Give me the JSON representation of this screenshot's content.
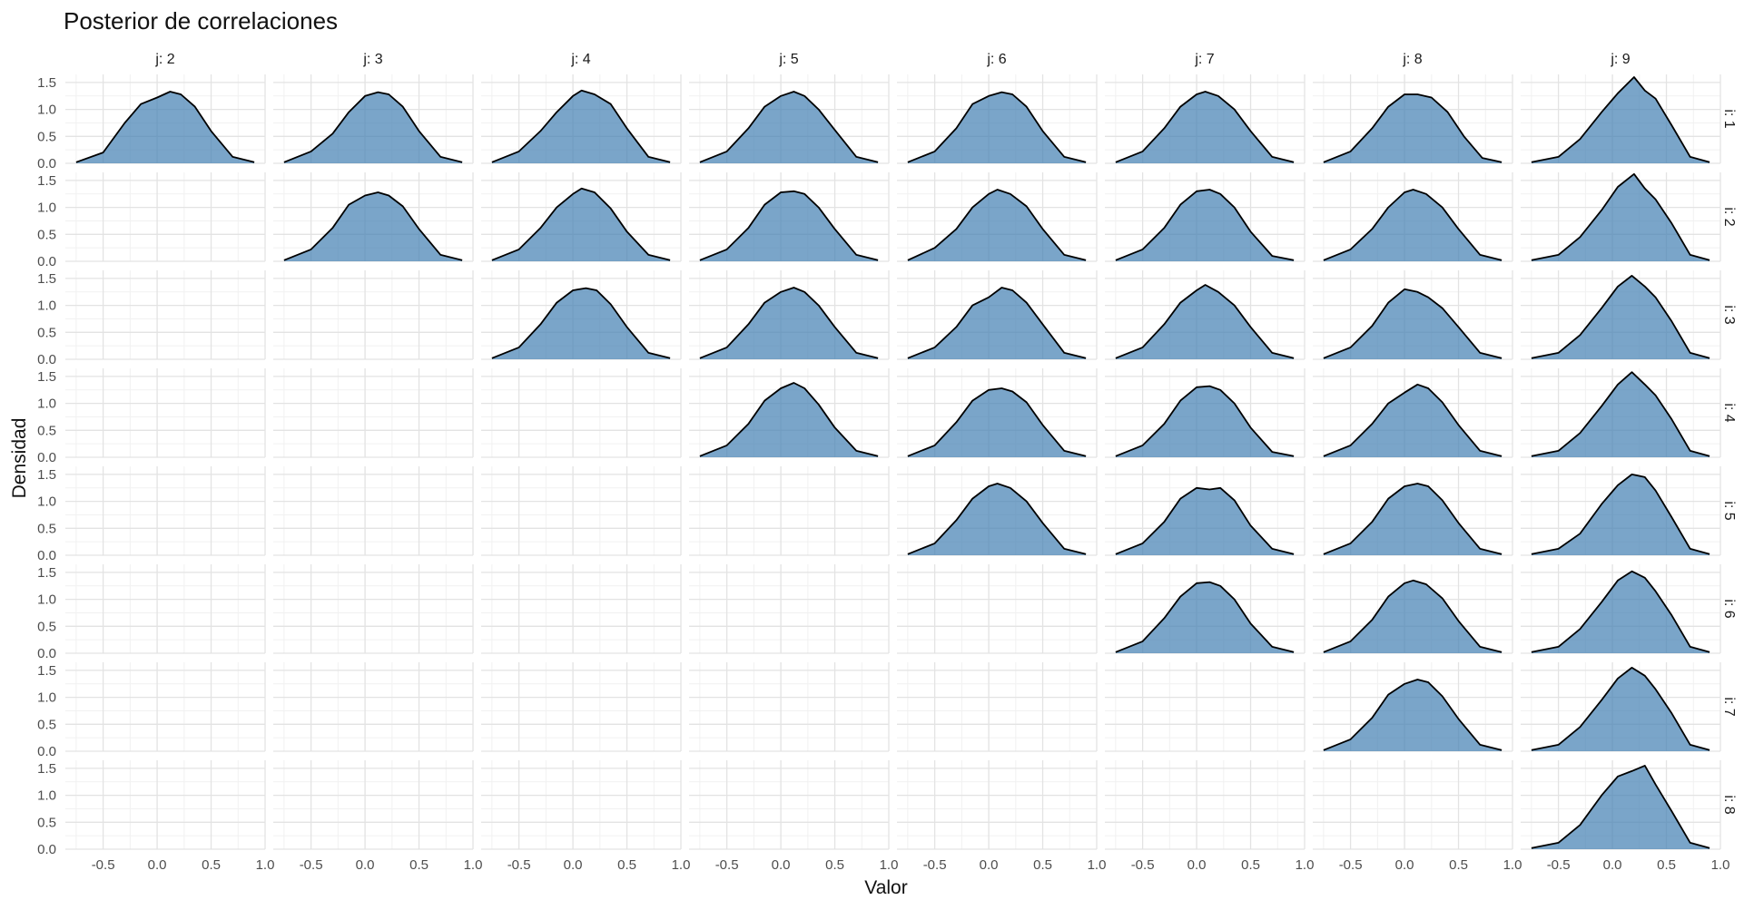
{
  "chart_data": {
    "type": "area",
    "title": "Posterior de correlaciones",
    "xlabel": "Valor",
    "ylabel": "Densidad",
    "column_strips": [
      "j: 2",
      "j: 3",
      "j: 4",
      "j: 5",
      "j: 6",
      "j: 7",
      "j: 8",
      "j: 9"
    ],
    "row_strips": [
      "i: 1",
      "i: 2",
      "i: 3",
      "i: 4",
      "i: 5",
      "i: 6",
      "i: 7",
      "i: 8"
    ],
    "x_ticks": [
      "-0.5",
      "0.0",
      "0.5",
      "1.0"
    ],
    "y_ticks": [
      "0.0",
      "0.5",
      "1.0",
      "1.5"
    ],
    "xlim": [
      -0.85,
      1.0
    ],
    "ylim": [
      0,
      1.65
    ],
    "grid": true,
    "fill_color": "#4682b4",
    "line_color": "#000000",
    "panels": [
      {
        "i": 1,
        "j": 2,
        "x": [
          -0.75,
          -0.5,
          -0.3,
          -0.15,
          0.0,
          0.12,
          0.22,
          0.35,
          0.5,
          0.7,
          0.9
        ],
        "density": [
          0.02,
          0.2,
          0.75,
          1.1,
          1.22,
          1.33,
          1.28,
          1.05,
          0.6,
          0.12,
          0.02
        ]
      },
      {
        "i": 1,
        "j": 3,
        "x": [
          -0.75,
          -0.5,
          -0.3,
          -0.15,
          0.0,
          0.12,
          0.22,
          0.35,
          0.5,
          0.7,
          0.9
        ],
        "density": [
          0.02,
          0.22,
          0.55,
          0.95,
          1.25,
          1.32,
          1.28,
          1.05,
          0.6,
          0.12,
          0.02
        ]
      },
      {
        "i": 1,
        "j": 4,
        "x": [
          -0.75,
          -0.5,
          -0.3,
          -0.15,
          0.0,
          0.08,
          0.2,
          0.35,
          0.5,
          0.7,
          0.9
        ],
        "density": [
          0.02,
          0.22,
          0.6,
          0.95,
          1.25,
          1.35,
          1.28,
          1.1,
          0.65,
          0.12,
          0.02
        ]
      },
      {
        "i": 1,
        "j": 5,
        "x": [
          -0.75,
          -0.5,
          -0.3,
          -0.15,
          0.0,
          0.12,
          0.22,
          0.35,
          0.5,
          0.7,
          0.9
        ],
        "density": [
          0.02,
          0.22,
          0.65,
          1.05,
          1.25,
          1.33,
          1.25,
          1.0,
          0.62,
          0.12,
          0.02
        ]
      },
      {
        "i": 1,
        "j": 6,
        "x": [
          -0.75,
          -0.5,
          -0.3,
          -0.15,
          0.0,
          0.12,
          0.22,
          0.35,
          0.5,
          0.7,
          0.9
        ],
        "density": [
          0.02,
          0.22,
          0.65,
          1.1,
          1.25,
          1.32,
          1.28,
          1.05,
          0.6,
          0.12,
          0.02
        ]
      },
      {
        "i": 1,
        "j": 7,
        "x": [
          -0.75,
          -0.5,
          -0.3,
          -0.15,
          0.0,
          0.08,
          0.2,
          0.35,
          0.5,
          0.7,
          0.9
        ],
        "density": [
          0.02,
          0.22,
          0.65,
          1.05,
          1.28,
          1.33,
          1.25,
          1.0,
          0.6,
          0.12,
          0.02
        ]
      },
      {
        "i": 1,
        "j": 8,
        "x": [
          -0.75,
          -0.5,
          -0.3,
          -0.15,
          0.0,
          0.12,
          0.25,
          0.4,
          0.55,
          0.72,
          0.9
        ],
        "density": [
          0.02,
          0.22,
          0.65,
          1.05,
          1.28,
          1.28,
          1.22,
          0.95,
          0.5,
          0.1,
          0.02
        ]
      },
      {
        "i": 1,
        "j": 9,
        "x": [
          -0.75,
          -0.5,
          -0.3,
          -0.1,
          0.05,
          0.2,
          0.3,
          0.4,
          0.55,
          0.72,
          0.9
        ],
        "density": [
          0.02,
          0.12,
          0.45,
          0.95,
          1.3,
          1.6,
          1.35,
          1.2,
          0.7,
          0.12,
          0.02
        ]
      },
      {
        "i": 2,
        "j": 3,
        "x": [
          -0.75,
          -0.5,
          -0.3,
          -0.15,
          0.0,
          0.12,
          0.22,
          0.35,
          0.5,
          0.7,
          0.9
        ],
        "density": [
          0.02,
          0.22,
          0.62,
          1.05,
          1.22,
          1.28,
          1.22,
          1.02,
          0.6,
          0.12,
          0.02
        ]
      },
      {
        "i": 2,
        "j": 4,
        "x": [
          -0.75,
          -0.5,
          -0.3,
          -0.15,
          0.0,
          0.08,
          0.2,
          0.35,
          0.5,
          0.7,
          0.9
        ],
        "density": [
          0.02,
          0.22,
          0.62,
          1.0,
          1.25,
          1.35,
          1.28,
          0.98,
          0.55,
          0.12,
          0.02
        ]
      },
      {
        "i": 2,
        "j": 5,
        "x": [
          -0.75,
          -0.5,
          -0.3,
          -0.15,
          0.0,
          0.12,
          0.22,
          0.35,
          0.5,
          0.7,
          0.9
        ],
        "density": [
          0.02,
          0.22,
          0.62,
          1.05,
          1.28,
          1.3,
          1.25,
          1.0,
          0.6,
          0.12,
          0.02
        ]
      },
      {
        "i": 2,
        "j": 6,
        "x": [
          -0.75,
          -0.5,
          -0.3,
          -0.15,
          0.0,
          0.08,
          0.2,
          0.35,
          0.5,
          0.7,
          0.9
        ],
        "density": [
          0.02,
          0.25,
          0.6,
          1.0,
          1.25,
          1.33,
          1.25,
          1.02,
          0.6,
          0.12,
          0.02
        ]
      },
      {
        "i": 2,
        "j": 7,
        "x": [
          -0.75,
          -0.5,
          -0.3,
          -0.15,
          0.0,
          0.12,
          0.22,
          0.35,
          0.5,
          0.7,
          0.9
        ],
        "density": [
          0.02,
          0.22,
          0.62,
          1.05,
          1.3,
          1.33,
          1.25,
          1.0,
          0.55,
          0.1,
          0.02
        ]
      },
      {
        "i": 2,
        "j": 8,
        "x": [
          -0.75,
          -0.5,
          -0.3,
          -0.15,
          0.0,
          0.08,
          0.2,
          0.35,
          0.5,
          0.7,
          0.9
        ],
        "density": [
          0.02,
          0.22,
          0.6,
          1.0,
          1.28,
          1.33,
          1.25,
          1.0,
          0.6,
          0.12,
          0.02
        ]
      },
      {
        "i": 2,
        "j": 9,
        "x": [
          -0.75,
          -0.5,
          -0.3,
          -0.1,
          0.05,
          0.2,
          0.3,
          0.4,
          0.55,
          0.72,
          0.9
        ],
        "density": [
          0.02,
          0.12,
          0.45,
          0.95,
          1.38,
          1.62,
          1.35,
          1.15,
          0.7,
          0.12,
          0.02
        ]
      },
      {
        "i": 3,
        "j": 4,
        "x": [
          -0.75,
          -0.5,
          -0.3,
          -0.15,
          0.0,
          0.12,
          0.22,
          0.35,
          0.5,
          0.7,
          0.9
        ],
        "density": [
          0.02,
          0.22,
          0.65,
          1.05,
          1.28,
          1.32,
          1.28,
          1.02,
          0.6,
          0.12,
          0.02
        ]
      },
      {
        "i": 3,
        "j": 5,
        "x": [
          -0.75,
          -0.5,
          -0.3,
          -0.15,
          0.0,
          0.12,
          0.22,
          0.35,
          0.5,
          0.7,
          0.9
        ],
        "density": [
          0.02,
          0.22,
          0.65,
          1.05,
          1.25,
          1.33,
          1.25,
          1.0,
          0.6,
          0.12,
          0.02
        ]
      },
      {
        "i": 3,
        "j": 6,
        "x": [
          -0.75,
          -0.5,
          -0.3,
          -0.15,
          0.0,
          0.12,
          0.22,
          0.35,
          0.5,
          0.7,
          0.9
        ],
        "density": [
          0.02,
          0.22,
          0.6,
          1.0,
          1.15,
          1.33,
          1.28,
          1.05,
          0.65,
          0.12,
          0.02
        ]
      },
      {
        "i": 3,
        "j": 7,
        "x": [
          -0.75,
          -0.5,
          -0.3,
          -0.15,
          0.0,
          0.08,
          0.2,
          0.35,
          0.5,
          0.7,
          0.9
        ],
        "density": [
          0.02,
          0.22,
          0.65,
          1.05,
          1.28,
          1.38,
          1.25,
          1.0,
          0.6,
          0.12,
          0.02
        ]
      },
      {
        "i": 3,
        "j": 8,
        "x": [
          -0.75,
          -0.5,
          -0.3,
          -0.15,
          0.0,
          0.12,
          0.22,
          0.35,
          0.5,
          0.7,
          0.9
        ],
        "density": [
          0.02,
          0.22,
          0.62,
          1.05,
          1.3,
          1.25,
          1.15,
          0.95,
          0.6,
          0.12,
          0.02
        ]
      },
      {
        "i": 3,
        "j": 9,
        "x": [
          -0.75,
          -0.5,
          -0.3,
          -0.1,
          0.05,
          0.18,
          0.3,
          0.4,
          0.55,
          0.72,
          0.9
        ],
        "density": [
          0.02,
          0.12,
          0.45,
          0.95,
          1.35,
          1.55,
          1.35,
          1.15,
          0.7,
          0.12,
          0.02
        ]
      },
      {
        "i": 4,
        "j": 5,
        "x": [
          -0.75,
          -0.5,
          -0.3,
          -0.15,
          0.0,
          0.12,
          0.22,
          0.35,
          0.5,
          0.7,
          0.9
        ],
        "density": [
          0.02,
          0.22,
          0.62,
          1.05,
          1.28,
          1.38,
          1.28,
          0.98,
          0.55,
          0.12,
          0.02
        ]
      },
      {
        "i": 4,
        "j": 6,
        "x": [
          -0.75,
          -0.5,
          -0.3,
          -0.15,
          0.0,
          0.12,
          0.22,
          0.35,
          0.5,
          0.7,
          0.9
        ],
        "density": [
          0.02,
          0.22,
          0.65,
          1.05,
          1.25,
          1.28,
          1.22,
          1.02,
          0.6,
          0.12,
          0.02
        ]
      },
      {
        "i": 4,
        "j": 7,
        "x": [
          -0.75,
          -0.5,
          -0.3,
          -0.15,
          0.0,
          0.12,
          0.22,
          0.35,
          0.5,
          0.7,
          0.9
        ],
        "density": [
          0.02,
          0.22,
          0.62,
          1.05,
          1.3,
          1.32,
          1.25,
          1.0,
          0.55,
          0.1,
          0.02
        ]
      },
      {
        "i": 4,
        "j": 8,
        "x": [
          -0.75,
          -0.5,
          -0.3,
          -0.15,
          0.0,
          0.12,
          0.22,
          0.35,
          0.5,
          0.7,
          0.9
        ],
        "density": [
          0.02,
          0.22,
          0.62,
          1.0,
          1.2,
          1.35,
          1.28,
          1.02,
          0.6,
          0.12,
          0.02
        ]
      },
      {
        "i": 4,
        "j": 9,
        "x": [
          -0.75,
          -0.5,
          -0.3,
          -0.1,
          0.05,
          0.18,
          0.3,
          0.4,
          0.55,
          0.72,
          0.9
        ],
        "density": [
          0.02,
          0.12,
          0.45,
          0.95,
          1.35,
          1.58,
          1.35,
          1.15,
          0.7,
          0.12,
          0.02
        ]
      },
      {
        "i": 5,
        "j": 6,
        "x": [
          -0.75,
          -0.5,
          -0.3,
          -0.15,
          0.0,
          0.08,
          0.2,
          0.35,
          0.5,
          0.7,
          0.9
        ],
        "density": [
          0.02,
          0.22,
          0.65,
          1.05,
          1.28,
          1.33,
          1.25,
          1.0,
          0.6,
          0.12,
          0.02
        ]
      },
      {
        "i": 5,
        "j": 7,
        "x": [
          -0.75,
          -0.5,
          -0.3,
          -0.15,
          0.0,
          0.12,
          0.22,
          0.35,
          0.5,
          0.7,
          0.9
        ],
        "density": [
          0.02,
          0.22,
          0.62,
          1.05,
          1.25,
          1.22,
          1.25,
          1.02,
          0.55,
          0.12,
          0.02
        ]
      },
      {
        "i": 5,
        "j": 8,
        "x": [
          -0.75,
          -0.5,
          -0.3,
          -0.15,
          0.0,
          0.12,
          0.22,
          0.35,
          0.5,
          0.7,
          0.9
        ],
        "density": [
          0.02,
          0.22,
          0.62,
          1.05,
          1.28,
          1.33,
          1.28,
          1.02,
          0.6,
          0.12,
          0.02
        ]
      },
      {
        "i": 5,
        "j": 9,
        "x": [
          -0.75,
          -0.5,
          -0.3,
          -0.1,
          0.05,
          0.18,
          0.3,
          0.4,
          0.55,
          0.72,
          0.9
        ],
        "density": [
          0.02,
          0.12,
          0.4,
          0.95,
          1.3,
          1.5,
          1.45,
          1.2,
          0.7,
          0.12,
          0.02
        ]
      },
      {
        "i": 6,
        "j": 7,
        "x": [
          -0.75,
          -0.5,
          -0.3,
          -0.15,
          0.0,
          0.12,
          0.22,
          0.35,
          0.5,
          0.7,
          0.9
        ],
        "density": [
          0.02,
          0.22,
          0.65,
          1.05,
          1.3,
          1.32,
          1.25,
          1.0,
          0.55,
          0.12,
          0.02
        ]
      },
      {
        "i": 6,
        "j": 8,
        "x": [
          -0.75,
          -0.5,
          -0.3,
          -0.15,
          0.0,
          0.08,
          0.2,
          0.35,
          0.5,
          0.7,
          0.9
        ],
        "density": [
          0.02,
          0.22,
          0.62,
          1.05,
          1.3,
          1.35,
          1.28,
          1.02,
          0.6,
          0.12,
          0.02
        ]
      },
      {
        "i": 6,
        "j": 9,
        "x": [
          -0.75,
          -0.5,
          -0.3,
          -0.1,
          0.05,
          0.18,
          0.3,
          0.4,
          0.55,
          0.72,
          0.9
        ],
        "density": [
          0.02,
          0.12,
          0.45,
          0.95,
          1.35,
          1.52,
          1.4,
          1.15,
          0.7,
          0.12,
          0.02
        ]
      },
      {
        "i": 7,
        "j": 8,
        "x": [
          -0.75,
          -0.5,
          -0.3,
          -0.15,
          0.0,
          0.12,
          0.22,
          0.35,
          0.5,
          0.7,
          0.9
        ],
        "density": [
          0.02,
          0.22,
          0.62,
          1.05,
          1.25,
          1.33,
          1.28,
          1.02,
          0.6,
          0.12,
          0.02
        ]
      },
      {
        "i": 7,
        "j": 9,
        "x": [
          -0.75,
          -0.5,
          -0.3,
          -0.1,
          0.05,
          0.18,
          0.3,
          0.4,
          0.55,
          0.72,
          0.9
        ],
        "density": [
          0.02,
          0.12,
          0.45,
          0.95,
          1.35,
          1.55,
          1.4,
          1.15,
          0.7,
          0.12,
          0.02
        ]
      },
      {
        "i": 8,
        "j": 9,
        "x": [
          -0.75,
          -0.5,
          -0.3,
          -0.1,
          0.05,
          0.18,
          0.3,
          0.4,
          0.55,
          0.72,
          0.9
        ],
        "density": [
          0.02,
          0.12,
          0.45,
          1.0,
          1.35,
          1.45,
          1.55,
          1.2,
          0.7,
          0.12,
          0.02
        ]
      }
    ]
  }
}
